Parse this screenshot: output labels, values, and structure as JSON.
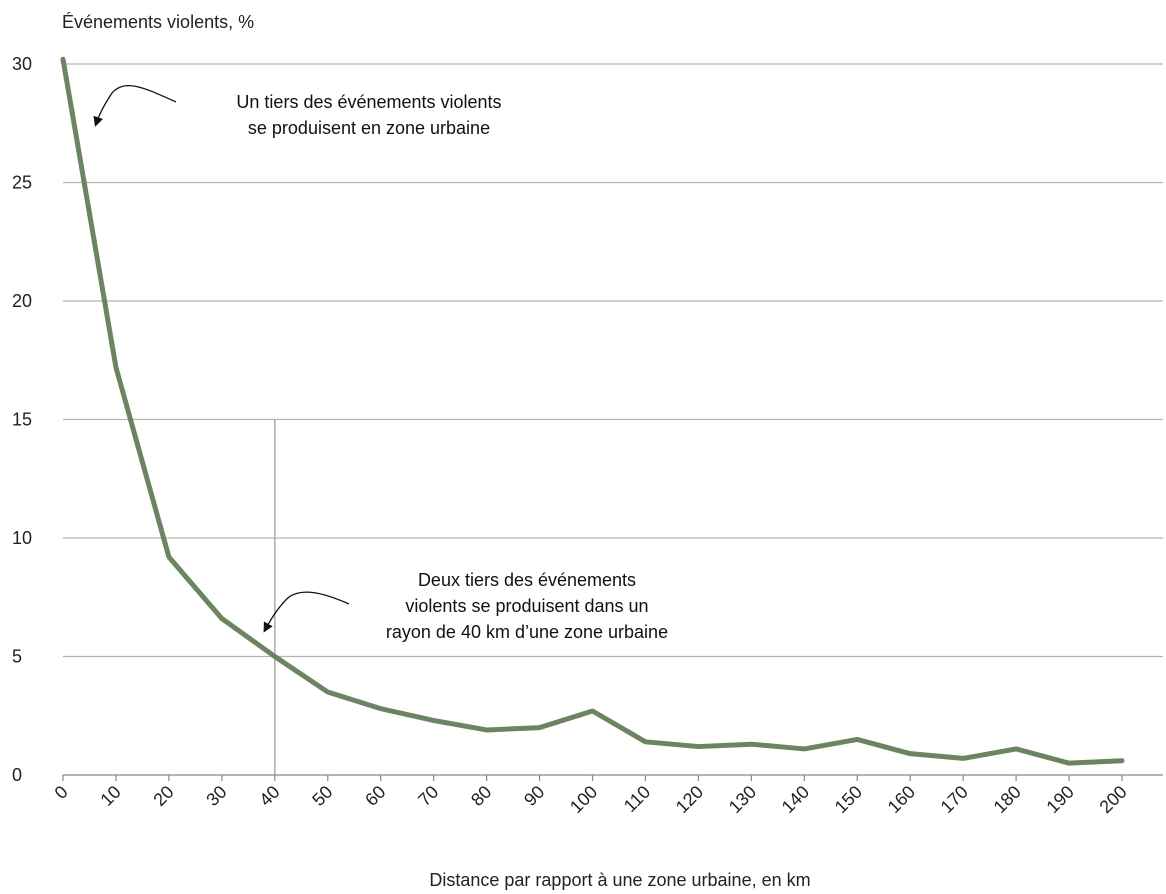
{
  "chart_data": {
    "type": "line",
    "ylabel": "Événements violents, %",
    "xlabel": "Distance par rapport à une zone urbaine, en km",
    "x": [
      0,
      10,
      20,
      30,
      40,
      50,
      60,
      70,
      80,
      90,
      100,
      110,
      120,
      130,
      140,
      150,
      160,
      170,
      180,
      190,
      200
    ],
    "series": [
      {
        "values": [
          30.2,
          17.2,
          9.2,
          6.6,
          5.0,
          3.5,
          2.8,
          2.3,
          1.9,
          2.0,
          2.7,
          1.4,
          1.2,
          1.3,
          1.1,
          1.5,
          0.9,
          0.7,
          1.1,
          0.5,
          0.6
        ]
      }
    ],
    "xticks": [
      "0",
      "10",
      "20",
      "30",
      "40",
      "50",
      "60",
      "70",
      "80",
      "90",
      "100",
      "110",
      "120",
      "130",
      "140",
      "150",
      "160",
      "170",
      "180",
      "190",
      "200"
    ],
    "yticks": [
      "0",
      "5",
      "10",
      "15",
      "20",
      "25",
      "30"
    ],
    "xlim": [
      0,
      200
    ],
    "ylim": [
      0,
      30
    ],
    "grid": "horizontal",
    "reference_line_x": 40,
    "reference_line_ymax": 15,
    "annotations": [
      {
        "lines": [
          "Un tiers des événements violents",
          "se produisent en zone urbaine"
        ],
        "points_to": [
          5,
          27
        ]
      },
      {
        "lines": [
          "Deux tiers des événements",
          "violents se produisent dans un",
          "rayon de 40 km d’une zone urbaine"
        ],
        "points_to": [
          38,
          6
        ]
      }
    ],
    "colors": {
      "line": "#6b8462",
      "grid": "#b3b3b3",
      "axis": "#888888",
      "ref_line": "#aaaaaa",
      "text": "#222222"
    }
  }
}
